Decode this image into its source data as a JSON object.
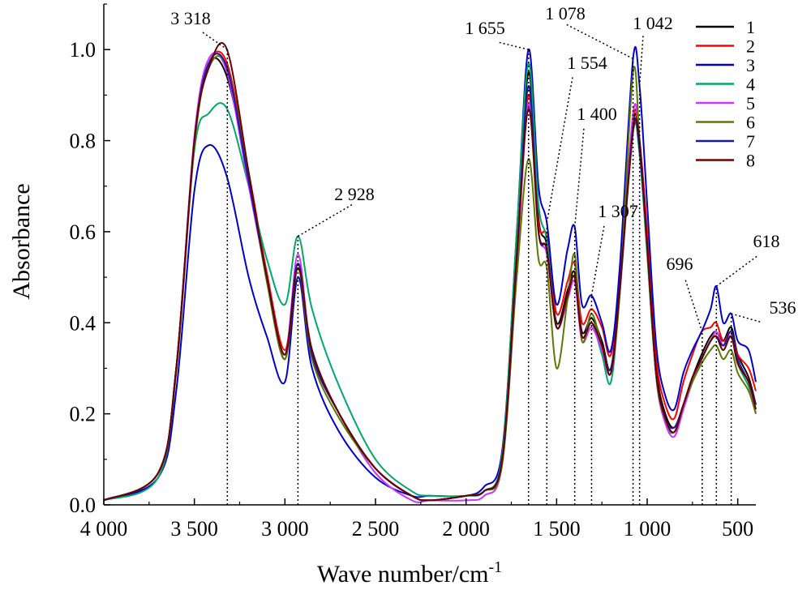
{
  "chart_data": {
    "type": "line",
    "xlabel": "Wave number/cm",
    "xlabel_sup": "-1",
    "ylabel": "Absorbance",
    "xlim": [
      4000,
      400
    ],
    "ylim": [
      0,
      1.1
    ],
    "x_reversed": true,
    "x_ticks": [
      {
        "v": 4000,
        "label": "4 000"
      },
      {
        "v": 3500,
        "label": "3 500"
      },
      {
        "v": 3000,
        "label": "3 000"
      },
      {
        "v": 2500,
        "label": "2 500"
      },
      {
        "v": 2000,
        "label": "2 000"
      },
      {
        "v": 1500,
        "label": "1 500"
      },
      {
        "v": 1000,
        "label": "1 000"
      },
      {
        "v": 500,
        "label": "500"
      }
    ],
    "y_ticks": [
      {
        "v": 0,
        "label": "0.0"
      },
      {
        "v": 0.2,
        "label": "0.2"
      },
      {
        "v": 0.4,
        "label": "0.4"
      },
      {
        "v": 0.6,
        "label": "0.6"
      },
      {
        "v": 0.8,
        "label": "0.8"
      },
      {
        "v": 1.0,
        "label": "1.0"
      }
    ],
    "grid": false,
    "legend_position": "top-right",
    "annotations": [
      {
        "label": "3 318",
        "x": 3318
      },
      {
        "label": "2 928",
        "x": 2928
      },
      {
        "label": "1 655",
        "x": 1655
      },
      {
        "label": "1 554",
        "x": 1554
      },
      {
        "label": "1 400",
        "x": 1400
      },
      {
        "label": "1 307",
        "x": 1307
      },
      {
        "label": "1 078",
        "x": 1078
      },
      {
        "label": "1 042",
        "x": 1042
      },
      {
        "label": "696",
        "x": 696
      },
      {
        "label": "618",
        "x": 618
      },
      {
        "label": "536",
        "x": 536
      }
    ],
    "x": [
      4000,
      3700,
      3600,
      3500,
      3420,
      3320,
      3200,
      3100,
      3000,
      2928,
      2850,
      2700,
      2500,
      2300,
      2200,
      2000,
      1900,
      1800,
      1720,
      1655,
      1600,
      1554,
      1500,
      1440,
      1400,
      1360,
      1307,
      1250,
      1200,
      1150,
      1078,
      1042,
      1000,
      950,
      900,
      850,
      800,
      750,
      700,
      650,
      618,
      580,
      536,
      500,
      440,
      400
    ],
    "series": [
      {
        "name": "1",
        "color": "#000000",
        "values": [
          0.01,
          0.07,
          0.3,
          0.8,
          0.97,
          0.94,
          0.72,
          0.5,
          0.32,
          0.53,
          0.33,
          0.2,
          0.08,
          0.02,
          0.01,
          0.02,
          0.03,
          0.1,
          0.55,
          0.95,
          0.63,
          0.57,
          0.4,
          0.47,
          0.51,
          0.38,
          0.41,
          0.36,
          0.3,
          0.49,
          0.84,
          0.79,
          0.58,
          0.3,
          0.2,
          0.17,
          0.22,
          0.28,
          0.33,
          0.37,
          0.38,
          0.36,
          0.39,
          0.33,
          0.28,
          0.22
        ]
      },
      {
        "name": "2",
        "color": "#ff0000",
        "values": [
          0.01,
          0.07,
          0.3,
          0.8,
          0.97,
          0.97,
          0.73,
          0.51,
          0.34,
          0.52,
          0.34,
          0.2,
          0.08,
          0.02,
          0.01,
          0.02,
          0.03,
          0.1,
          0.56,
          0.9,
          0.62,
          0.59,
          0.42,
          0.49,
          0.53,
          0.4,
          0.43,
          0.39,
          0.33,
          0.51,
          0.85,
          0.8,
          0.6,
          0.32,
          0.22,
          0.19,
          0.27,
          0.33,
          0.38,
          0.39,
          0.4,
          0.36,
          0.38,
          0.33,
          0.3,
          0.25
        ]
      },
      {
        "name": "3",
        "color": "#0000cc",
        "values": [
          0.01,
          0.06,
          0.25,
          0.69,
          0.79,
          0.72,
          0.5,
          0.37,
          0.27,
          0.5,
          0.3,
          0.16,
          0.06,
          0.02,
          0.02,
          0.02,
          0.04,
          0.12,
          0.6,
          1.0,
          0.7,
          0.62,
          0.44,
          0.56,
          0.61,
          0.44,
          0.46,
          0.4,
          0.34,
          0.53,
          0.98,
          0.92,
          0.66,
          0.35,
          0.24,
          0.21,
          0.29,
          0.34,
          0.38,
          0.43,
          0.48,
          0.4,
          0.42,
          0.36,
          0.34,
          0.27
        ]
      },
      {
        "name": "4",
        "color": "#00a86b",
        "values": [
          0.01,
          0.06,
          0.3,
          0.78,
          0.86,
          0.87,
          0.7,
          0.54,
          0.44,
          0.59,
          0.43,
          0.26,
          0.1,
          0.03,
          0.02,
          0.02,
          0.03,
          0.11,
          0.6,
          0.97,
          0.66,
          0.58,
          0.39,
          0.46,
          0.5,
          0.37,
          0.4,
          0.33,
          0.27,
          0.47,
          0.82,
          0.77,
          0.55,
          0.28,
          0.18,
          0.16,
          0.22,
          0.27,
          0.32,
          0.36,
          0.37,
          0.34,
          0.37,
          0.31,
          0.26,
          0.21
        ]
      },
      {
        "name": "5",
        "color": "#cc33ff",
        "values": [
          0.01,
          0.07,
          0.3,
          0.81,
          0.98,
          0.95,
          0.7,
          0.5,
          0.33,
          0.55,
          0.33,
          0.2,
          0.07,
          0.01,
          0.01,
          0.01,
          0.02,
          0.09,
          0.52,
          0.88,
          0.6,
          0.55,
          0.39,
          0.45,
          0.49,
          0.36,
          0.39,
          0.34,
          0.29,
          0.47,
          0.86,
          0.8,
          0.57,
          0.28,
          0.18,
          0.15,
          0.21,
          0.27,
          0.32,
          0.36,
          0.38,
          0.35,
          0.37,
          0.31,
          0.27,
          0.2
        ]
      },
      {
        "name": "6",
        "color": "#5a7a00",
        "values": [
          0.01,
          0.07,
          0.29,
          0.79,
          0.96,
          0.96,
          0.72,
          0.49,
          0.32,
          0.52,
          0.32,
          0.19,
          0.08,
          0.02,
          0.01,
          0.02,
          0.03,
          0.09,
          0.5,
          0.76,
          0.54,
          0.52,
          0.3,
          0.45,
          0.55,
          0.36,
          0.42,
          0.35,
          0.3,
          0.47,
          0.95,
          0.8,
          0.56,
          0.28,
          0.19,
          0.16,
          0.22,
          0.27,
          0.31,
          0.34,
          0.35,
          0.32,
          0.34,
          0.29,
          0.25,
          0.2
        ]
      },
      {
        "name": "7",
        "color": "#1a1aa0",
        "values": [
          0.01,
          0.07,
          0.3,
          0.8,
          0.97,
          0.96,
          0.71,
          0.5,
          0.33,
          0.53,
          0.33,
          0.2,
          0.08,
          0.02,
          0.01,
          0.02,
          0.03,
          0.1,
          0.54,
          0.92,
          0.6,
          0.56,
          0.39,
          0.46,
          0.5,
          0.37,
          0.4,
          0.35,
          0.3,
          0.48,
          0.83,
          0.78,
          0.57,
          0.29,
          0.19,
          0.17,
          0.22,
          0.28,
          0.32,
          0.36,
          0.37,
          0.35,
          0.38,
          0.32,
          0.27,
          0.22
        ]
      },
      {
        "name": "8",
        "color": "#6b0000",
        "values": [
          0.01,
          0.07,
          0.3,
          0.8,
          0.96,
          1.0,
          0.73,
          0.5,
          0.33,
          0.52,
          0.34,
          0.2,
          0.08,
          0.02,
          0.01,
          0.02,
          0.03,
          0.1,
          0.55,
          0.87,
          0.6,
          0.56,
          0.39,
          0.46,
          0.5,
          0.37,
          0.4,
          0.35,
          0.29,
          0.48,
          0.82,
          0.8,
          0.57,
          0.29,
          0.19,
          0.16,
          0.22,
          0.28,
          0.32,
          0.36,
          0.37,
          0.34,
          0.37,
          0.31,
          0.27,
          0.21
        ]
      }
    ]
  }
}
